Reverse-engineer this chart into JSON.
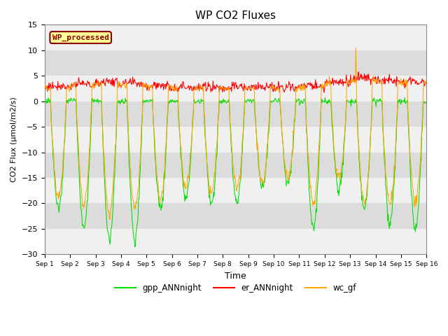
{
  "title": "WP CO2 Fluxes",
  "xlabel": "Time",
  "ylabel": "CO2 Flux (μmol/m2/s)",
  "ylim": [
    -30,
    15
  ],
  "annotation_text": "WP_processed",
  "annotation_color": "#8B0000",
  "annotation_bg": "#FFFF99",
  "gpp_color": "#00DD00",
  "er_color": "#FF0000",
  "wc_color": "#FFA500",
  "bg_color": "#DCDCDC",
  "n_days": 15,
  "points_per_day": 48,
  "x_tick_labels": [
    "Sep 1",
    "Sep 2",
    "Sep 3",
    "Sep 4",
    "Sep 5",
    "Sep 6",
    "Sep 7",
    "Sep 8",
    "Sep 9",
    "Sep 10",
    "Sep 11",
    "Sep 12",
    "Sep 13",
    "Sep 14",
    "Sep 15",
    "Sep 16"
  ],
  "legend_labels": [
    "gpp_ANNnight",
    "er_ANNnight",
    "wc_gf"
  ],
  "title_fontsize": 11,
  "gpp_day_depths": [
    -21,
    -25,
    -27,
    -27,
    -21,
    -19,
    -20,
    -20,
    -17,
    -16,
    -25,
    -17,
    -21,
    -24,
    -25
  ],
  "wc_day_depths": [
    -19,
    -20,
    -22,
    -21,
    -19,
    -17,
    -18,
    -17,
    -16,
    -15,
    -20,
    -15,
    -20,
    -20,
    -20
  ],
  "er_day_base": [
    2.7,
    3.0,
    3.5,
    3.2,
    2.8,
    2.5,
    2.5,
    2.5,
    2.5,
    2.5,
    2.7,
    3.5,
    4.2,
    3.8,
    3.5
  ],
  "wc_spike_day": 12,
  "wc_spike_idx": 10,
  "wc_spike_val": 10.5,
  "grid_band_color_light": "#F0F0F0",
  "grid_band_color_dark": "#DCDCDC"
}
